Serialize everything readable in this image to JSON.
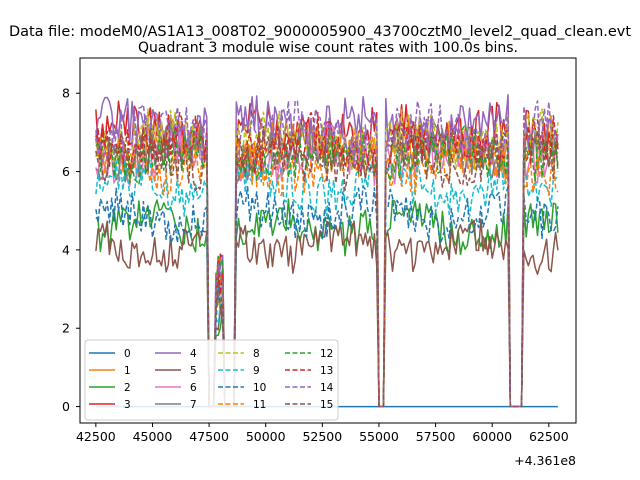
{
  "figure": {
    "suptitle": "Data file: modeM0/AS1A13_008T02_9000005900_43700cztM0_level2_quad_clean.evt"
  },
  "chart_data": {
    "type": "line",
    "title": "Quadrant 3 module wise count rates with 100.0s bins.",
    "xlabel": "",
    "ylabel": "",
    "x_offset_label": "+4.361e8",
    "xlim": [
      41800,
      63700
    ],
    "ylim": [
      -0.42,
      8.9
    ],
    "x_ticks": [
      42500,
      45000,
      47500,
      50000,
      52500,
      55000,
      57500,
      60000,
      62500
    ],
    "x_tick_labels": [
      "42500",
      "45000",
      "47500",
      "50000",
      "52500",
      "55000",
      "57500",
      "60000",
      "62500"
    ],
    "y_ticks": [
      0,
      2,
      4,
      6,
      8
    ],
    "y_tick_labels": [
      "0",
      "2",
      "4",
      "6",
      "8"
    ],
    "x_range": [
      42500,
      62900
    ],
    "bin_size_s": 100,
    "gaps": [
      [
        47500,
        47750
      ],
      [
        48200,
        48600
      ],
      [
        55000,
        55200
      ],
      [
        60800,
        61300
      ]
    ],
    "legend": {
      "placement": "lower-left",
      "ncol": 4
    },
    "series": [
      {
        "name": "0",
        "color": "#1f77b4",
        "dash": "solid",
        "level": 0.0
      },
      {
        "name": "1",
        "color": "#ff7f0e",
        "dash": "solid",
        "level": 6.6
      },
      {
        "name": "2",
        "color": "#2ca02c",
        "dash": "solid",
        "level": 4.6
      },
      {
        "name": "3",
        "color": "#d62728",
        "dash": "solid",
        "level": 7.0
      },
      {
        "name": "4",
        "color": "#9467bd",
        "dash": "solid",
        "level": 7.2
      },
      {
        "name": "5",
        "color": "#8c564b",
        "dash": "solid",
        "level": 4.1
      },
      {
        "name": "6",
        "color": "#e377c2",
        "dash": "solid",
        "level": 6.4
      },
      {
        "name": "7",
        "color": "#7f7f7f",
        "dash": "solid",
        "level": 6.5
      },
      {
        "name": "8",
        "color": "#bcbd22",
        "dash": "dash",
        "level": 6.8
      },
      {
        "name": "9",
        "color": "#17becf",
        "dash": "dash",
        "level": 5.6
      },
      {
        "name": "10",
        "color": "#1f77b4",
        "dash": "dash",
        "level": 4.9
      },
      {
        "name": "11",
        "color": "#ff7f0e",
        "dash": "dash",
        "level": 6.2
      },
      {
        "name": "12",
        "color": "#2ca02c",
        "dash": "dash",
        "level": 6.4
      },
      {
        "name": "13",
        "color": "#d62728",
        "dash": "dash",
        "level": 6.7
      },
      {
        "name": "14",
        "color": "#9467bd",
        "dash": "dash",
        "level": 7.0
      },
      {
        "name": "15",
        "color": "#8c564b",
        "dash": "dash",
        "level": 6.3
      }
    ]
  }
}
